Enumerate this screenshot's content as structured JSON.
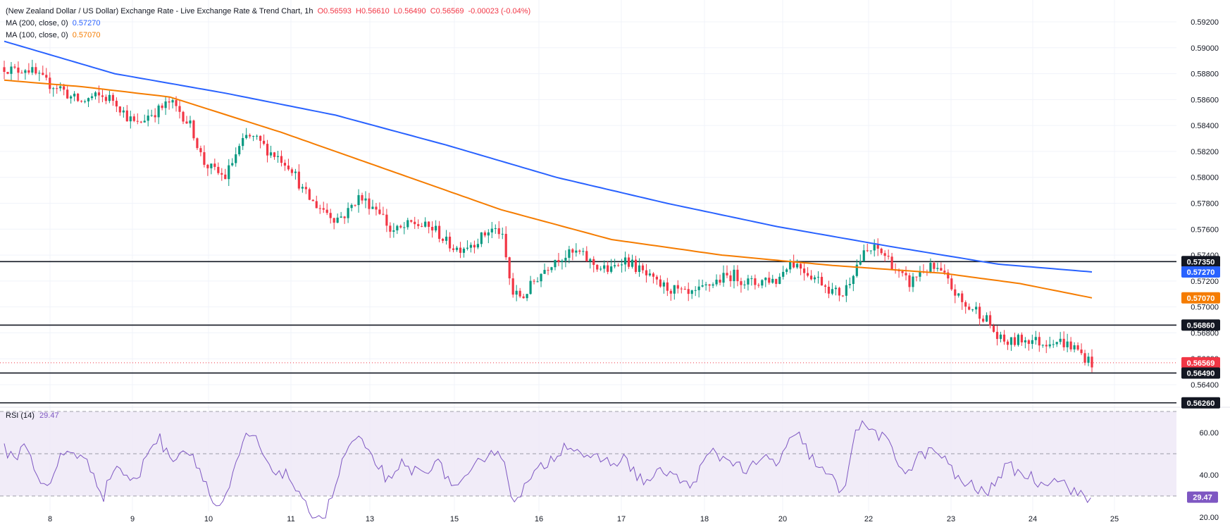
{
  "header": {
    "title": "(New Zealand Dollar / US Dollar) Exchange Rate - Live Exchange Rate & Trend Chart, 1h",
    "open": "O0.56593",
    "high": "H0.56610",
    "low": "L0.56490",
    "close": "C0.56569",
    "change": "-0.00023 (-0.04%)",
    "ma200_label": "MA (200, close, 0)",
    "ma200_value": "0.57270",
    "ma100_label": "MA (100, close, 0)",
    "ma100_value": "0.57070"
  },
  "rsi": {
    "label": "RSI (14)",
    "value": "29.47"
  },
  "colors": {
    "up": "#089981",
    "down": "#f23645",
    "ma200": "#2962ff",
    "ma100": "#f57c00",
    "rsi": "#7e57c2",
    "rsi_band": "#ede7f6",
    "grid": "#f0f3fa",
    "text": "#131722"
  },
  "chart_data": [
    {
      "type": "candlestick",
      "title": "(New Zealand Dollar / US Dollar) Exchange Rate - Live Exchange Rate & Trend Chart, 1h",
      "x_tick_labels": [
        "8",
        "9",
        "10",
        "11",
        "13",
        "15",
        "16",
        "17",
        "18",
        "20",
        "22",
        "23",
        "24",
        "25"
      ],
      "y_tick_labels": [
        "0.59200",
        "0.59000",
        "0.58800",
        "0.58600",
        "0.58400",
        "0.58200",
        "0.58000",
        "0.57800",
        "0.57600",
        "0.57400",
        "0.57200",
        "0.57000",
        "0.56800",
        "0.56600",
        "0.56400"
      ],
      "ylim": [
        0.5626,
        0.5931
      ],
      "close_path": [
        [
          0,
          0.5885
        ],
        [
          10,
          0.5882
        ],
        [
          20,
          0.5885
        ],
        [
          30,
          0.5878
        ],
        [
          40,
          0.5872
        ],
        [
          50,
          0.587
        ],
        [
          60,
          0.5862
        ],
        [
          70,
          0.5858
        ],
        [
          80,
          0.5862
        ],
        [
          90,
          0.5862
        ],
        [
          100,
          0.586
        ],
        [
          110,
          0.5848
        ],
        [
          120,
          0.584
        ],
        [
          130,
          0.5848
        ],
        [
          140,
          0.5852
        ],
        [
          150,
          0.5858
        ],
        [
          160,
          0.585
        ],
        [
          170,
          0.5838
        ],
        [
          180,
          0.5812
        ],
        [
          190,
          0.5805
        ],
        [
          200,
          0.58
        ],
        [
          210,
          0.5818
        ],
        [
          220,
          0.5832
        ],
        [
          230,
          0.5828
        ],
        [
          240,
          0.582
        ],
        [
          250,
          0.5815
        ],
        [
          260,
          0.5808
        ],
        [
          270,
          0.579
        ],
        [
          280,
          0.578
        ],
        [
          290,
          0.5775
        ],
        [
          300,
          0.5768
        ],
        [
          310,
          0.5772
        ],
        [
          320,
          0.5785
        ],
        [
          330,
          0.578
        ],
        [
          340,
          0.5775
        ],
        [
          350,
          0.5758
        ],
        [
          360,
          0.576
        ],
        [
          370,
          0.5765
        ],
        [
          380,
          0.5762
        ],
        [
          390,
          0.576
        ],
        [
          400,
          0.575
        ],
        [
          410,
          0.5745
        ],
        [
          420,
          0.5748
        ],
        [
          430,
          0.5752
        ],
        [
          440,
          0.576
        ],
        [
          450,
          0.5758
        ],
        [
          460,
          0.571
        ],
        [
          470,
          0.5708
        ],
        [
          480,
          0.572
        ],
        [
          490,
          0.573
        ],
        [
          500,
          0.5738
        ],
        [
          510,
          0.574
        ],
        [
          520,
          0.5742
        ],
        [
          530,
          0.5735
        ],
        [
          540,
          0.573
        ],
        [
          550,
          0.5728
        ],
        [
          560,
          0.5738
        ],
        [
          570,
          0.5732
        ],
        [
          580,
          0.5725
        ],
        [
          590,
          0.5718
        ],
        [
          600,
          0.5715
        ],
        [
          610,
          0.5712
        ],
        [
          620,
          0.5708
        ],
        [
          630,
          0.5712
        ],
        [
          640,
          0.5718
        ],
        [
          650,
          0.5722
        ],
        [
          660,
          0.5725
        ],
        [
          670,
          0.572
        ],
        [
          680,
          0.5718
        ],
        [
          690,
          0.5722
        ],
        [
          700,
          0.572
        ],
        [
          710,
          0.5735
        ],
        [
          720,
          0.5732
        ],
        [
          730,
          0.5725
        ],
        [
          740,
          0.572
        ],
        [
          750,
          0.5712
        ],
        [
          760,
          0.571
        ],
        [
          770,
          0.573
        ],
        [
          780,
          0.5742
        ],
        [
          790,
          0.5745
        ],
        [
          800,
          0.5738
        ],
        [
          810,
          0.5725
        ],
        [
          820,
          0.5718
        ],
        [
          830,
          0.5728
        ],
        [
          840,
          0.573
        ],
        [
          850,
          0.5725
        ],
        [
          860,
          0.5712
        ],
        [
          870,
          0.57
        ],
        [
          880,
          0.5698
        ],
        [
          890,
          0.569
        ],
        [
          900,
          0.5675
        ],
        [
          910,
          0.5672
        ],
        [
          920,
          0.5675
        ],
        [
          930,
          0.5675
        ],
        [
          940,
          0.5672
        ],
        [
          950,
          0.5675
        ],
        [
          960,
          0.5672
        ],
        [
          970,
          0.5668
        ],
        [
          980,
          0.566
        ],
        [
          985,
          0.5657
        ]
      ],
      "series": [
        {
          "name": "MA (200, close, 0)",
          "values_path": [
            [
              0,
              0.5905
            ],
            [
              100,
              0.588
            ],
            [
              200,
              0.5865
            ],
            [
              300,
              0.5848
            ],
            [
              400,
              0.5825
            ],
            [
              500,
              0.58
            ],
            [
              600,
              0.578
            ],
            [
              700,
              0.5762
            ],
            [
              800,
              0.5747
            ],
            [
              900,
              0.5733
            ],
            [
              985,
              0.5727
            ]
          ],
          "last": 0.5727
        },
        {
          "name": "MA (100, close, 0)",
          "values_path": [
            [
              0,
              0.5875
            ],
            [
              70,
              0.587
            ],
            [
              150,
              0.5862
            ],
            [
              250,
              0.5835
            ],
            [
              350,
              0.5805
            ],
            [
              450,
              0.5775
            ],
            [
              550,
              0.5752
            ],
            [
              650,
              0.574
            ],
            [
              750,
              0.5732
            ],
            [
              850,
              0.5726
            ],
            [
              920,
              0.5718
            ],
            [
              985,
              0.5707
            ]
          ],
          "last": 0.5707
        }
      ],
      "horizontal_levels": [
        0.5735,
        0.5686,
        0.5649,
        0.5626
      ],
      "price_labels": [
        {
          "text": "0.57350",
          "kind": "level"
        },
        {
          "text": "0.57270",
          "kind": "ma200"
        },
        {
          "text": "0.57070",
          "kind": "ma100"
        },
        {
          "text": "0.56860",
          "kind": "level"
        },
        {
          "text": "0.56569",
          "kind": "last"
        },
        {
          "text": "0.56490",
          "kind": "level"
        },
        {
          "text": "0.56260",
          "kind": "level"
        }
      ]
    },
    {
      "type": "line",
      "title": "RSI (14)",
      "y_tick_labels": [
        "60.00",
        "40.00",
        "20.00"
      ],
      "ylim": [
        17,
        73
      ],
      "levels": [
        70,
        50,
        30
      ],
      "last": 29.47,
      "values_path": [
        [
          0,
          52
        ],
        [
          10,
          48
        ],
        [
          20,
          55
        ],
        [
          30,
          40
        ],
        [
          40,
          32
        ],
        [
          50,
          48
        ],
        [
          60,
          52
        ],
        [
          70,
          48
        ],
        [
          80,
          42
        ],
        [
          90,
          30
        ],
        [
          100,
          45
        ],
        [
          110,
          40
        ],
        [
          120,
          36
        ],
        [
          130,
          52
        ],
        [
          140,
          58
        ],
        [
          150,
          47
        ],
        [
          160,
          52
        ],
        [
          170,
          50
        ],
        [
          180,
          40
        ],
        [
          190,
          25
        ],
        [
          200,
          27
        ],
        [
          210,
          44
        ],
        [
          220,
          60
        ],
        [
          230,
          55
        ],
        [
          240,
          42
        ],
        [
          250,
          42
        ],
        [
          260,
          38
        ],
        [
          270,
          26
        ],
        [
          280,
          22
        ],
        [
          290,
          20
        ],
        [
          300,
          35
        ],
        [
          310,
          52
        ],
        [
          320,
          58
        ],
        [
          330,
          49
        ],
        [
          340,
          44
        ],
        [
          350,
          35
        ],
        [
          360,
          45
        ],
        [
          370,
          42
        ],
        [
          380,
          41
        ],
        [
          390,
          47
        ],
        [
          400,
          40
        ],
        [
          410,
          33
        ],
        [
          420,
          38
        ],
        [
          430,
          46
        ],
        [
          440,
          52
        ],
        [
          450,
          50
        ],
        [
          460,
          29
        ],
        [
          470,
          33
        ],
        [
          480,
          40
        ],
        [
          490,
          45
        ],
        [
          500,
          50
        ],
        [
          510,
          55
        ],
        [
          520,
          52
        ],
        [
          530,
          46
        ],
        [
          540,
          48
        ],
        [
          550,
          45
        ],
        [
          560,
          48
        ],
        [
          570,
          42
        ],
        [
          580,
          36
        ],
        [
          590,
          40
        ],
        [
          600,
          42
        ],
        [
          610,
          38
        ],
        [
          620,
          34
        ],
        [
          630,
          42
        ],
        [
          640,
          51
        ],
        [
          650,
          48
        ],
        [
          660,
          47
        ],
        [
          670,
          42
        ],
        [
          680,
          44
        ],
        [
          690,
          48
        ],
        [
          700,
          45
        ],
        [
          710,
          55
        ],
        [
          720,
          58
        ],
        [
          730,
          49
        ],
        [
          740,
          42
        ],
        [
          750,
          38
        ],
        [
          760,
          30
        ],
        [
          770,
          62
        ],
        [
          780,
          63
        ],
        [
          790,
          60
        ],
        [
          800,
          55
        ],
        [
          810,
          45
        ],
        [
          820,
          42
        ],
        [
          830,
          50
        ],
        [
          840,
          51
        ],
        [
          850,
          49
        ],
        [
          860,
          40
        ],
        [
          870,
          36
        ],
        [
          880,
          34
        ],
        [
          890,
          30
        ],
        [
          900,
          40
        ],
        [
          910,
          44
        ],
        [
          920,
          41
        ],
        [
          930,
          39
        ],
        [
          940,
          35
        ],
        [
          950,
          40
        ],
        [
          960,
          36
        ],
        [
          970,
          32
        ],
        [
          980,
          28
        ],
        [
          985,
          29.47
        ]
      ]
    }
  ]
}
